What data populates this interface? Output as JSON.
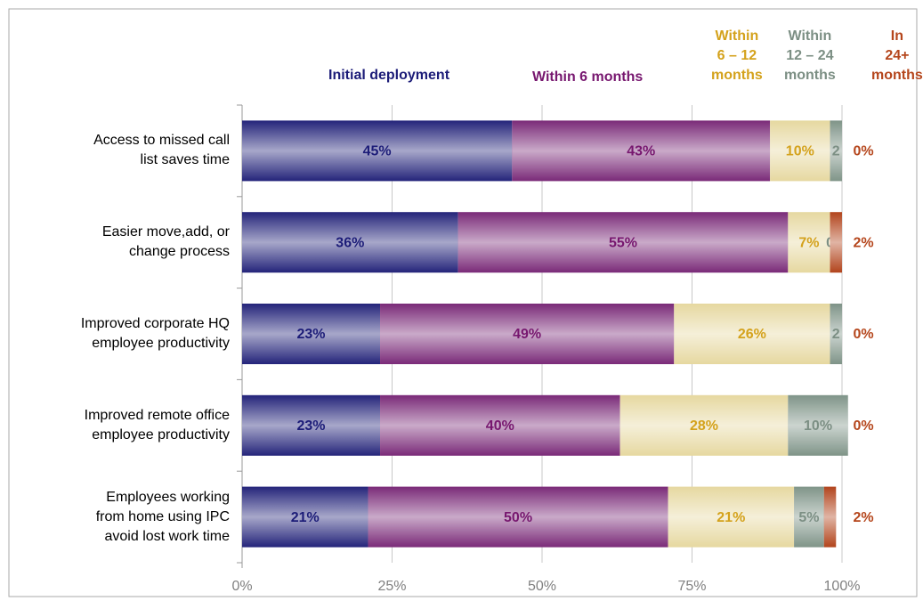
{
  "chart_data": {
    "type": "stacked_barh",
    "categories": [
      "Access to missed call\nlist saves time",
      "Easier move,add, or\nchange process",
      "Improved corporate HQ\nemployee productivity",
      "Improved remote office\nemployee productivity",
      "Employees working\nfrom home using IPC\navoid lost work time"
    ],
    "series": [
      {
        "name": "Initial deployment",
        "color": "#24247a",
        "label_color": "#1c1c78",
        "values": [
          45,
          36,
          23,
          23,
          21
        ],
        "value_labels": [
          "45%",
          "36%",
          "23%",
          "23%",
          "21%"
        ]
      },
      {
        "name": "Within 6 months",
        "color": "#7a2a78",
        "label_color": "#77176f",
        "values": [
          43,
          55,
          49,
          40,
          50
        ],
        "value_labels": [
          "43%",
          "55%",
          "49%",
          "40%",
          "50%"
        ]
      },
      {
        "name": "Within\n6 – 12\nmonths",
        "color": "#e6d8a0",
        "label_color": "#d4a21c",
        "values": [
          10,
          7,
          26,
          28,
          21
        ],
        "value_labels": [
          "10%",
          "7%",
          "26%",
          "28%",
          "21%"
        ]
      },
      {
        "name": "Within\n12 – 24\nmonths",
        "color": "#7f9488",
        "label_color": "#7c8f84",
        "values": [
          2,
          0,
          2,
          10,
          5
        ],
        "value_labels": [
          "2",
          "0",
          "2",
          "10%",
          "5%"
        ]
      },
      {
        "name": "In\n24+\nmonths",
        "color": "#b2441c",
        "label_color": "#b5461c",
        "values": [
          0,
          2,
          0,
          0,
          2
        ],
        "value_labels": [
          "0%",
          "2%",
          "0%",
          "0%",
          "2%"
        ]
      }
    ],
    "xlim": [
      0,
      100
    ],
    "xticks": [
      {
        "value": 0,
        "label": "0%"
      },
      {
        "value": 25,
        "label": "25%"
      },
      {
        "value": 50,
        "label": "50%"
      },
      {
        "value": 75,
        "label": "75%"
      },
      {
        "value": 100,
        "label": "100%"
      }
    ],
    "grid": true
  }
}
